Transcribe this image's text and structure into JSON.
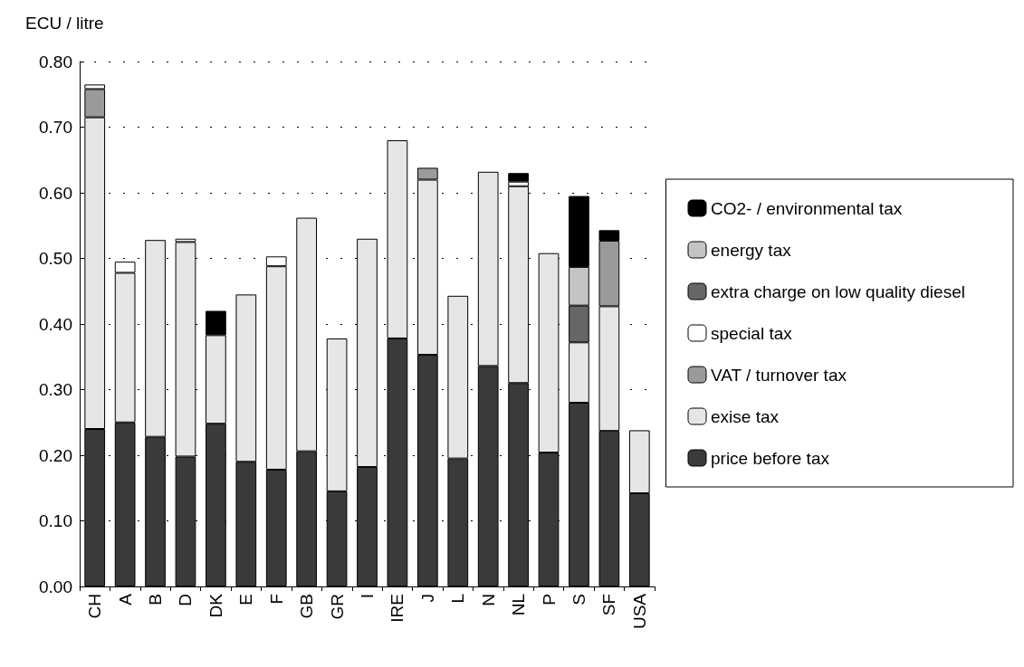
{
  "chart_data": {
    "type": "bar",
    "stacked": true,
    "ylabel": "ECU / litre",
    "categories": [
      "CH",
      "A",
      "B",
      "D",
      "DK",
      "E",
      "F",
      "GB",
      "GR",
      "I",
      "IRE",
      "J",
      "L",
      "N",
      "NL",
      "P",
      "S",
      "SF",
      "USA"
    ],
    "ylim": [
      0,
      0.8
    ],
    "yticks": [
      {
        "value": 0,
        "label": "0.00"
      },
      {
        "value": 0.1,
        "label": "0.10"
      },
      {
        "value": 0.2,
        "label": "0.20"
      },
      {
        "value": 0.3,
        "label": "0.30"
      },
      {
        "value": 0.4,
        "label": "0.40"
      },
      {
        "value": 0.5,
        "label": "0.50"
      },
      {
        "value": 0.6,
        "label": "0.60"
      },
      {
        "value": 0.7,
        "label": "0.70"
      },
      {
        "value": 0.8,
        "label": "0.80"
      }
    ],
    "grid": "y",
    "legend": "right",
    "series": [
      {
        "name": "price before tax",
        "color": "#3a3a3a",
        "values": [
          0.24,
          0.25,
          0.228,
          0.198,
          0.248,
          0.19,
          0.178,
          0.206,
          0.145,
          0.182,
          0.378,
          0.353,
          0.195,
          0.336,
          0.31,
          0.204,
          0.28,
          0.237,
          0.142
        ]
      },
      {
        "name": "exise tax",
        "color": "#e6e6e6",
        "values": [
          0.475,
          0.228,
          0.3,
          0.327,
          0.135,
          0.255,
          0.31,
          0.356,
          0.233,
          0.348,
          0.302,
          0.267,
          0.248,
          0.296,
          0.3,
          0.304,
          0.092,
          0.19,
          0.096
        ]
      },
      {
        "name": "VAT / turnover tax",
        "color": "#9a9a9a",
        "values": [
          0.043,
          null,
          null,
          null,
          null,
          null,
          null,
          null,
          null,
          null,
          null,
          0.018,
          null,
          null,
          null,
          null,
          null,
          0.1,
          null
        ]
      },
      {
        "name": "special tax",
        "color": "#ffffff",
        "values": [
          0.007,
          0.017,
          null,
          0.005,
          null,
          null,
          0.015,
          null,
          null,
          null,
          null,
          null,
          null,
          null,
          0.007,
          null,
          null,
          null,
          null
        ]
      },
      {
        "name": "extra charge on low quality diesel",
        "color": "#666666",
        "values": [
          null,
          null,
          null,
          null,
          null,
          null,
          null,
          null,
          null,
          null,
          null,
          null,
          null,
          null,
          null,
          null,
          0.056,
          null,
          null
        ]
      },
      {
        "name": "energy tax",
        "color": "#c4c4c4",
        "values": [
          null,
          null,
          null,
          null,
          null,
          null,
          null,
          null,
          null,
          null,
          null,
          null,
          null,
          null,
          null,
          null,
          0.059,
          null,
          null
        ]
      },
      {
        "name": "CO2- / environmental tax",
        "color": "#000000",
        "values": [
          null,
          null,
          null,
          null,
          0.037,
          null,
          null,
          null,
          null,
          null,
          null,
          null,
          null,
          null,
          0.013,
          null,
          0.108,
          0.016,
          null
        ]
      }
    ]
  }
}
